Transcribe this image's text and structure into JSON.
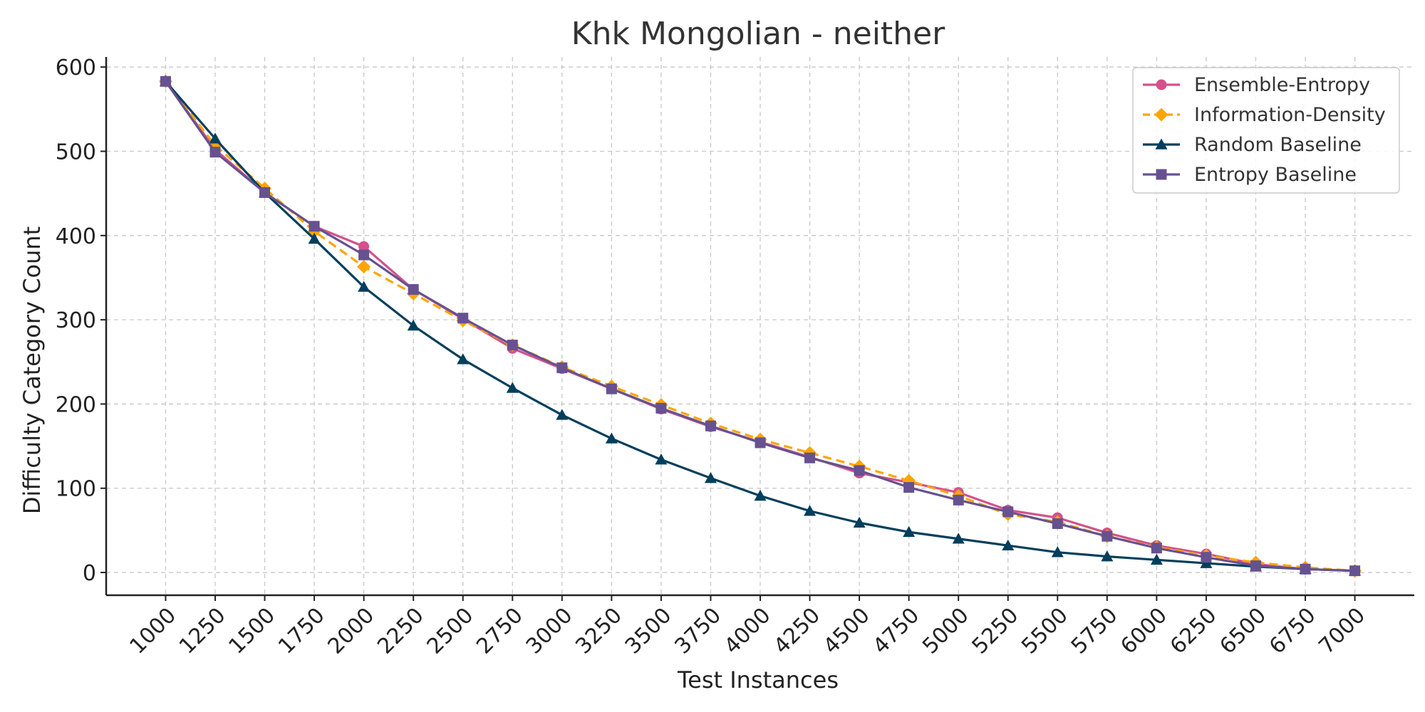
{
  "chart_data": {
    "type": "line",
    "title": "Khk Mongolian - neither",
    "xlabel": "Test Instances",
    "ylabel": "Difficulty Category Count",
    "x": [
      1000,
      1250,
      1500,
      1750,
      2000,
      2250,
      2500,
      2750,
      3000,
      3250,
      3500,
      3750,
      4000,
      4250,
      4500,
      4750,
      5000,
      5250,
      5500,
      5750,
      6000,
      6250,
      6500,
      6750,
      7000
    ],
    "xlim": [
      700,
      7300
    ],
    "ylim": [
      -27,
      612
    ],
    "yticks": [
      0,
      100,
      200,
      300,
      400,
      500,
      600
    ],
    "grid": true,
    "legend_position": "top-right",
    "series": [
      {
        "name": "Ensemble-Entropy",
        "color": "#d4508a",
        "marker": "circle",
        "linestyle": "solid",
        "values": [
          583,
          502,
          451,
          411,
          387,
          336,
          301,
          266,
          242,
          218,
          194,
          173,
          155,
          137,
          118,
          107,
          95,
          74,
          65,
          47,
          32,
          22,
          10,
          4,
          2
        ]
      },
      {
        "name": "Information-Density",
        "color": "#ffa500",
        "marker": "diamond",
        "linestyle": "dashed",
        "values": [
          583,
          507,
          456,
          405,
          363,
          331,
          299,
          270,
          244,
          221,
          199,
          177,
          158,
          142,
          126,
          109,
          91,
          69,
          60,
          43,
          30,
          20,
          12,
          6,
          2
        ]
      },
      {
        "name": "Random Baseline",
        "color": "#003f5c",
        "marker": "triangle",
        "linestyle": "solid",
        "values": [
          583,
          515,
          451,
          396,
          339,
          293,
          253,
          219,
          187,
          159,
          134,
          112,
          91,
          73,
          59,
          48,
          40,
          32,
          24,
          19,
          15,
          11,
          7,
          4,
          2
        ]
      },
      {
        "name": "Entropy Baseline",
        "color": "#665191",
        "marker": "square",
        "linestyle": "solid",
        "values": [
          583,
          499,
          451,
          411,
          377,
          336,
          302,
          270,
          243,
          218,
          195,
          174,
          154,
          136,
          121,
          101,
          86,
          72,
          58,
          43,
          29,
          18,
          8,
          4,
          2
        ]
      }
    ]
  }
}
